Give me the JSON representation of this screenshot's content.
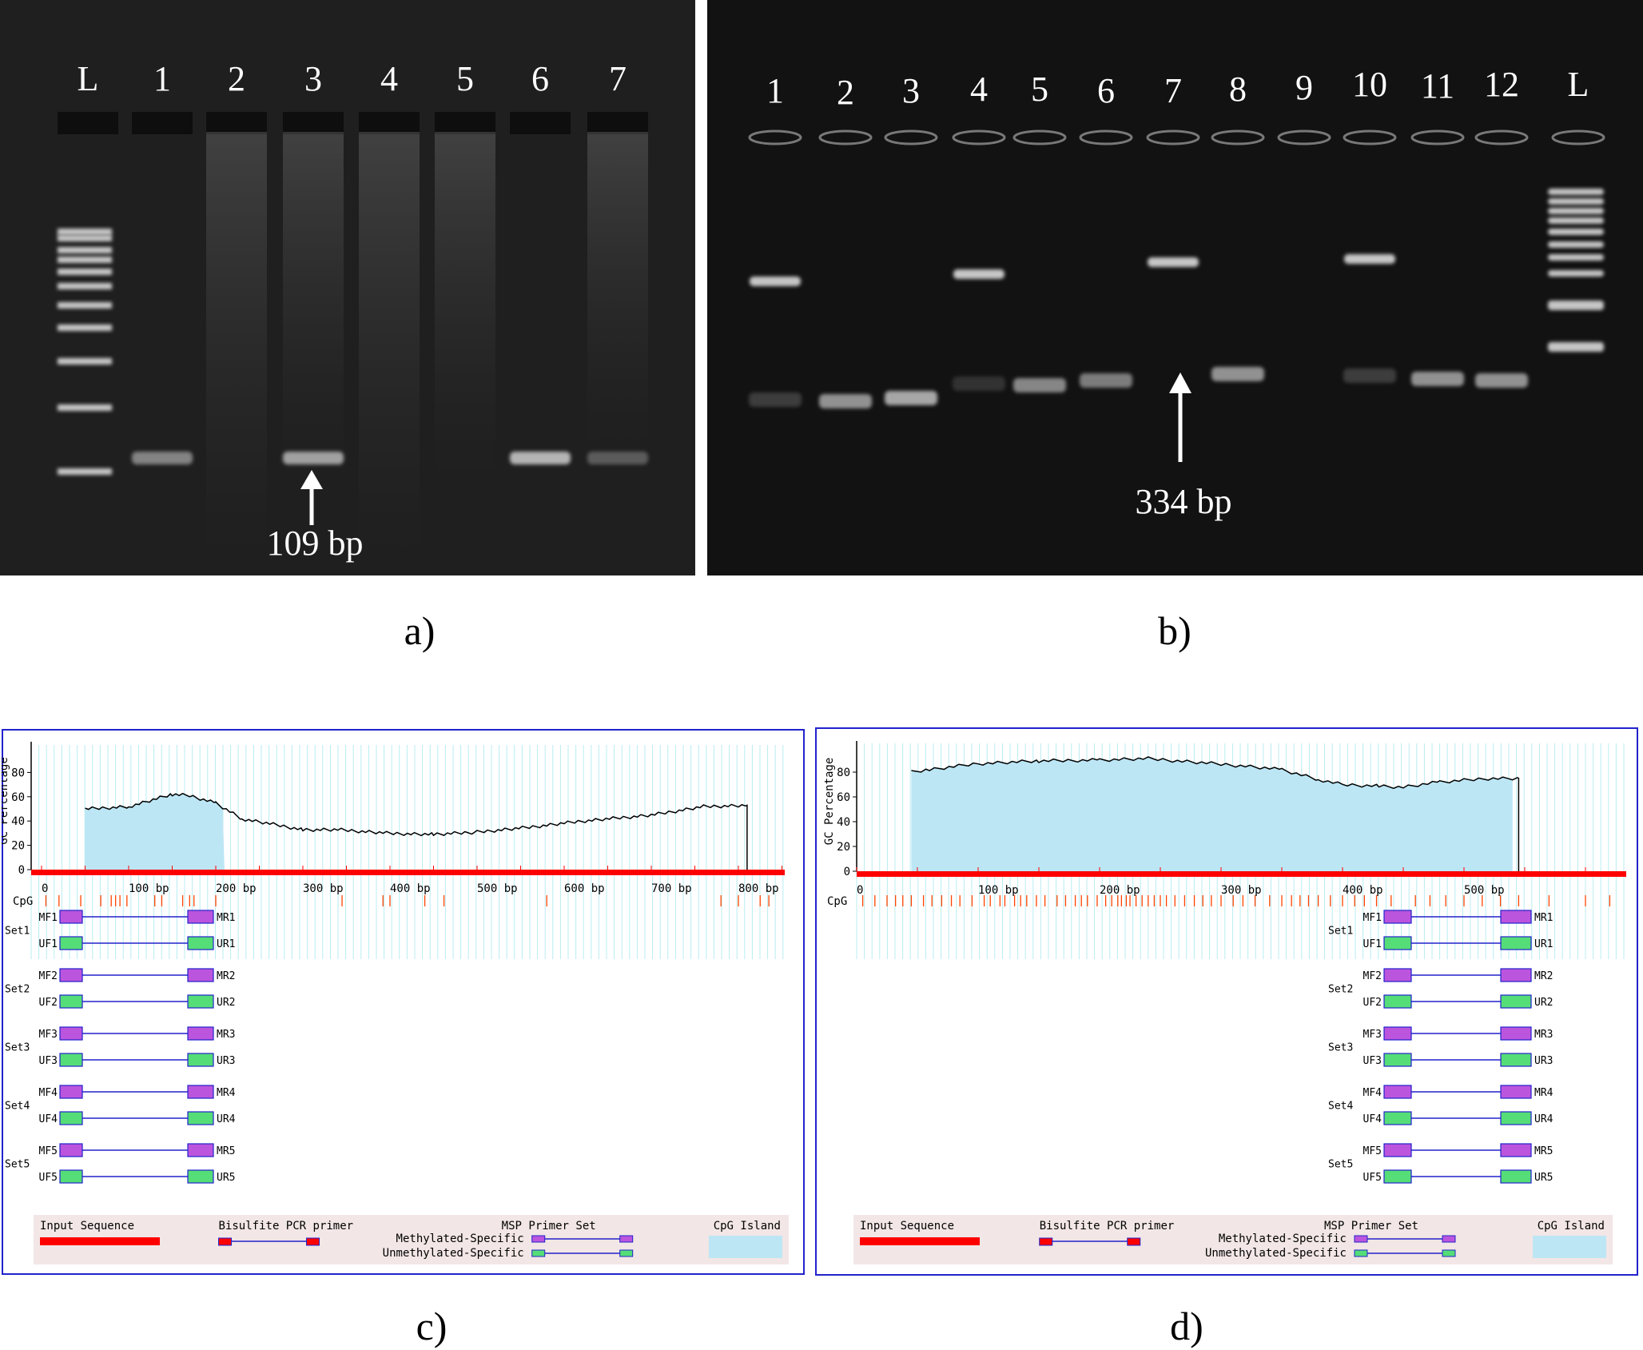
{
  "panels": {
    "a": {
      "label": "a)",
      "lanes": [
        "L",
        "1",
        "2",
        "3",
        "4",
        "5",
        "6",
        "7"
      ],
      "arrow_label": "109 bp"
    },
    "b": {
      "label": "b)",
      "lanes": [
        "1",
        "2",
        "3",
        "4",
        "5",
        "6",
        "7",
        "8",
        "9",
        "10",
        "11",
        "12",
        "L"
      ],
      "arrow_label": "334 bp"
    },
    "c": {
      "label": "c)",
      "y_axis_label": "GC Percentage",
      "y_ticks": [
        "0",
        "20",
        "40",
        "60",
        "80"
      ],
      "x_ticks": [
        "0",
        "100 bp",
        "200 bp",
        "300 bp",
        "400 bp",
        "500 bp",
        "600 bp",
        "700 bp",
        "800 bp"
      ],
      "cpg_label": "CpG",
      "primer_sets": [
        {
          "set": "Set1",
          "mf": "MF1",
          "mr": "MR1",
          "uf": "UF1",
          "ur": "UR1"
        },
        {
          "set": "Set2",
          "mf": "MF2",
          "mr": "MR2",
          "uf": "UF2",
          "ur": "UR2"
        },
        {
          "set": "Set3",
          "mf": "MF3",
          "mr": "MR3",
          "uf": "UF3",
          "ur": "UR3"
        },
        {
          "set": "Set4",
          "mf": "MF4",
          "mr": "MR4",
          "uf": "UF4",
          "ur": "UR4"
        },
        {
          "set": "Set5",
          "mf": "MF5",
          "mr": "MR5",
          "uf": "UF5",
          "ur": "UR5"
        }
      ],
      "legend": {
        "input_sequence": "Input Sequence",
        "bisulfite_primer": "Bisulfite PCR primer",
        "msp_primer_set": "MSP Primer Set",
        "methylated": "Methylated-Specific",
        "unmethylated": "Unmethylated-Specific",
        "cpg_island": "CpG Island"
      }
    },
    "d": {
      "label": "d)",
      "y_axis_label": "GC Percentage",
      "y_ticks": [
        "0",
        "20",
        "40",
        "60",
        "80"
      ],
      "x_ticks": [
        "0",
        "100 bp",
        "200 bp",
        "300 bp",
        "400 bp",
        "500 bp"
      ],
      "cpg_label": "CpG",
      "primer_sets": [
        {
          "set": "Set1",
          "mf": "MF1",
          "mr": "MR1",
          "uf": "UF1",
          "ur": "UR1"
        },
        {
          "set": "Set2",
          "mf": "MF2",
          "mr": "MR2",
          "uf": "UF2",
          "ur": "UR2"
        },
        {
          "set": "Set3",
          "mf": "MF3",
          "mr": "MR3",
          "uf": "UF3",
          "ur": "UR3"
        },
        {
          "set": "Set4",
          "mf": "MF4",
          "mr": "MR4",
          "uf": "UF4",
          "ur": "UR4"
        },
        {
          "set": "Set5",
          "mf": "MF5",
          "mr": "MR5",
          "uf": "UF5",
          "ur": "UR5"
        }
      ],
      "legend": {
        "input_sequence": "Input Sequence",
        "bisulfite_primer": "Bisulfite PCR primer",
        "msp_primer_set": "MSP Primer Set",
        "methylated": "Methylated-Specific",
        "unmethylated": "Unmethylated-Specific",
        "cpg_island": "CpG Island"
      }
    }
  },
  "colors": {
    "gel_a_bg": "#1f1f1f",
    "gel_b_bg": "#121212",
    "band": "#e6e6e6",
    "frame": "#2222cc",
    "cpg_island": "#bde6f5",
    "input_sequence": "#ff0000",
    "methylated_primer": "#bb55dd",
    "unmethylated_primer": "#55dd77",
    "primer_line": "#2222cc",
    "legend_bg": "#f2e6e6",
    "grid": "#b8ecf2"
  }
}
